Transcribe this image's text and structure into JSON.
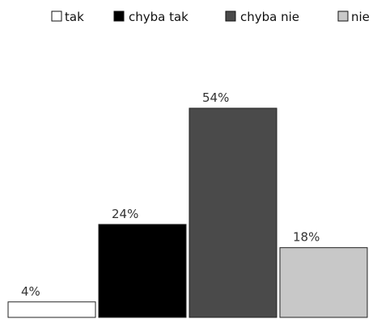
{
  "chart_data": {
    "type": "bar",
    "categories": [
      "tak",
      "chyba tak",
      "chyba nie",
      "nie"
    ],
    "values": [
      4,
      24,
      54,
      18
    ],
    "data_labels": [
      "4%",
      "24%",
      "54%",
      "18%"
    ],
    "colors": [
      "#ffffff",
      "#000000",
      "#4a4a4a",
      "#c8c8c8"
    ],
    "unit": "%",
    "ylim": [
      0,
      54
    ],
    "grid": false,
    "legend_position": "top",
    "title": "",
    "xlabel": "",
    "ylabel": ""
  }
}
